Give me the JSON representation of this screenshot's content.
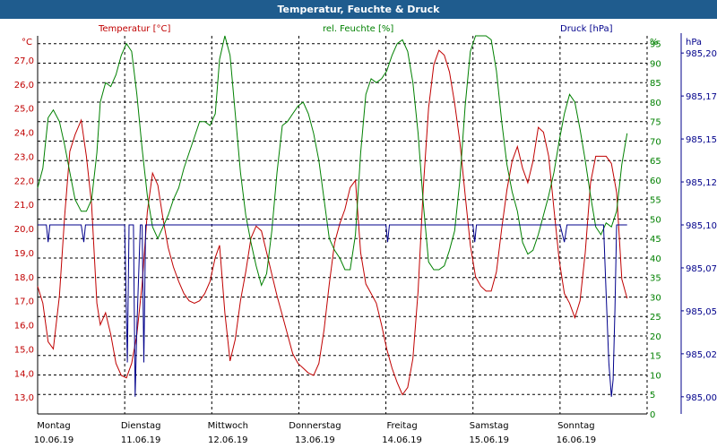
{
  "window": {
    "title": "Temperatur, Feuchte & Druck"
  },
  "colors": {
    "temp": "#c00000",
    "hum": "#008000",
    "pres": "#00008b",
    "grid": "#000000",
    "bg": "#ffffff",
    "title_bg": "#1f5c8e"
  },
  "chart_data": {
    "type": "line",
    "title": "Temperatur, Feuchte & Druck",
    "grid": true,
    "axes": {
      "temp": {
        "label": "Temperatur [°C]",
        "unit": "°C",
        "ylim": [
          12.3,
          28.0
        ],
        "ticks": [
          "13,0",
          "14,0",
          "15,0",
          "16,0",
          "17,0",
          "18,0",
          "19,0",
          "20,0",
          "21,0",
          "22,0",
          "23,0",
          "24,0",
          "25,0",
          "26,0",
          "27,0"
        ],
        "tick_values": [
          13,
          14,
          15,
          16,
          17,
          18,
          19,
          20,
          21,
          22,
          23,
          24,
          25,
          26,
          27
        ]
      },
      "hum": {
        "label": "rel. Feuchte [%]",
        "unit": "%",
        "ylim": [
          0,
          97
        ],
        "ticks": [
          "0",
          "5",
          "10",
          "15",
          "20",
          "25",
          "30",
          "35",
          "40",
          "45",
          "50",
          "55",
          "60",
          "65",
          "70",
          "75",
          "80",
          "85",
          "90",
          "95"
        ],
        "tick_values": [
          0,
          5,
          10,
          15,
          20,
          25,
          30,
          35,
          40,
          45,
          50,
          55,
          60,
          65,
          70,
          75,
          80,
          85,
          90,
          95
        ]
      },
      "pres": {
        "label": "Druck [hPa]",
        "unit": "hPa",
        "ylim": [
          984.99,
          985.21
        ],
        "ticks": [
          "985,00",
          "985,02",
          "985,05",
          "985,07",
          "985,10",
          "985,12",
          "985,15",
          "985,17",
          "985,20"
        ],
        "tick_values": [
          985.0,
          985.025,
          985.05,
          985.075,
          985.1,
          985.125,
          985.15,
          985.175,
          985.2
        ]
      }
    },
    "x": {
      "range_days": [
        0,
        7
      ],
      "ticks": [
        {
          "day": "Montag",
          "date": "10.06.19"
        },
        {
          "day": "Dienstag",
          "date": "11.06.19"
        },
        {
          "day": "Mittwoch",
          "date": "12.06.19"
        },
        {
          "day": "Donnerstag",
          "date": "13.06.19"
        },
        {
          "day": "Freitag",
          "date": "14.06.19"
        },
        {
          "day": "Samstag",
          "date": "15.06.19"
        },
        {
          "day": "Sonntag",
          "date": "16.06.19"
        }
      ]
    },
    "series": [
      {
        "name": "Temperatur [°C]",
        "axis": "temp",
        "points": [
          [
            0.0,
            17.6
          ],
          [
            0.06,
            16.9
          ],
          [
            0.12,
            15.3
          ],
          [
            0.18,
            15.0
          ],
          [
            0.25,
            17.2
          ],
          [
            0.31,
            20.5
          ],
          [
            0.37,
            23.2
          ],
          [
            0.43,
            23.9
          ],
          [
            0.5,
            24.5
          ],
          [
            0.56,
            23.0
          ],
          [
            0.62,
            21.0
          ],
          [
            0.68,
            16.9
          ],
          [
            0.72,
            16.0
          ],
          [
            0.78,
            16.5
          ],
          [
            0.84,
            15.6
          ],
          [
            0.9,
            14.4
          ],
          [
            0.96,
            13.9
          ],
          [
            1.02,
            13.8
          ],
          [
            1.08,
            14.4
          ],
          [
            1.14,
            15.6
          ],
          [
            1.2,
            17.7
          ],
          [
            1.26,
            20.7
          ],
          [
            1.32,
            22.3
          ],
          [
            1.38,
            21.8
          ],
          [
            1.44,
            20.4
          ],
          [
            1.5,
            19.2
          ],
          [
            1.56,
            18.4
          ],
          [
            1.62,
            17.8
          ],
          [
            1.68,
            17.3
          ],
          [
            1.74,
            17.0
          ],
          [
            1.8,
            16.9
          ],
          [
            1.86,
            17.0
          ],
          [
            1.92,
            17.3
          ],
          [
            1.98,
            17.8
          ],
          [
            2.04,
            18.8
          ],
          [
            2.09,
            19.3
          ],
          [
            2.15,
            16.5
          ],
          [
            2.21,
            14.5
          ],
          [
            2.27,
            15.4
          ],
          [
            2.33,
            17.0
          ],
          [
            2.39,
            18.2
          ],
          [
            2.45,
            19.6
          ],
          [
            2.51,
            20.1
          ],
          [
            2.57,
            19.9
          ],
          [
            2.63,
            19.0
          ],
          [
            2.69,
            18.1
          ],
          [
            2.75,
            17.2
          ],
          [
            2.81,
            16.4
          ],
          [
            2.87,
            15.6
          ],
          [
            2.93,
            14.8
          ],
          [
            2.99,
            14.4
          ],
          [
            3.05,
            14.2
          ],
          [
            3.11,
            14.0
          ],
          [
            3.17,
            13.9
          ],
          [
            3.23,
            14.4
          ],
          [
            3.29,
            15.8
          ],
          [
            3.35,
            17.7
          ],
          [
            3.41,
            19.4
          ],
          [
            3.47,
            20.2
          ],
          [
            3.53,
            20.8
          ],
          [
            3.59,
            21.7
          ],
          [
            3.65,
            22.0
          ],
          [
            3.71,
            19.0
          ],
          [
            3.77,
            17.7
          ],
          [
            3.83,
            17.3
          ],
          [
            3.89,
            16.9
          ],
          [
            3.95,
            16.0
          ],
          [
            4.01,
            15.0
          ],
          [
            4.07,
            14.2
          ],
          [
            4.13,
            13.6
          ],
          [
            4.19,
            13.1
          ],
          [
            4.25,
            13.4
          ],
          [
            4.31,
            14.6
          ],
          [
            4.37,
            17.4
          ],
          [
            4.43,
            21.7
          ],
          [
            4.49,
            25.0
          ],
          [
            4.55,
            26.8
          ],
          [
            4.61,
            27.4
          ],
          [
            4.67,
            27.2
          ],
          [
            4.73,
            26.5
          ],
          [
            4.79,
            25.2
          ],
          [
            4.85,
            23.6
          ],
          [
            4.91,
            21.4
          ],
          [
            4.97,
            19.3
          ],
          [
            5.03,
            18.0
          ],
          [
            5.09,
            17.6
          ],
          [
            5.15,
            17.4
          ],
          [
            5.21,
            17.4
          ],
          [
            5.27,
            18.2
          ],
          [
            5.33,
            20.0
          ],
          [
            5.39,
            21.6
          ],
          [
            5.45,
            22.8
          ],
          [
            5.51,
            23.4
          ],
          [
            5.57,
            22.5
          ],
          [
            5.63,
            21.9
          ],
          [
            5.69,
            22.8
          ],
          [
            5.75,
            24.2
          ],
          [
            5.81,
            24.0
          ],
          [
            5.87,
            23.0
          ],
          [
            5.93,
            20.8
          ],
          [
            5.99,
            18.7
          ],
          [
            6.05,
            17.3
          ],
          [
            6.11,
            16.9
          ],
          [
            6.17,
            16.3
          ],
          [
            6.23,
            17.0
          ],
          [
            6.29,
            19.0
          ],
          [
            6.35,
            21.9
          ],
          [
            6.41,
            23.0
          ],
          [
            6.47,
            23.0
          ],
          [
            6.53,
            23.0
          ],
          [
            6.59,
            22.7
          ],
          [
            6.65,
            21.5
          ],
          [
            6.71,
            17.9
          ],
          [
            6.77,
            17.1
          ]
        ]
      },
      {
        "name": "rel. Feuchte [%]",
        "axis": "hum",
        "points": [
          [
            0.0,
            58
          ],
          [
            0.06,
            63
          ],
          [
            0.12,
            76
          ],
          [
            0.18,
            78
          ],
          [
            0.25,
            75
          ],
          [
            0.31,
            69
          ],
          [
            0.37,
            62
          ],
          [
            0.43,
            55
          ],
          [
            0.5,
            52
          ],
          [
            0.56,
            52
          ],
          [
            0.62,
            55
          ],
          [
            0.68,
            67
          ],
          [
            0.72,
            80
          ],
          [
            0.78,
            85
          ],
          [
            0.84,
            84
          ],
          [
            0.9,
            87
          ],
          [
            0.96,
            92
          ],
          [
            1.02,
            95
          ],
          [
            1.08,
            93
          ],
          [
            1.14,
            82
          ],
          [
            1.2,
            68
          ],
          [
            1.26,
            56
          ],
          [
            1.32,
            48
          ],
          [
            1.38,
            45
          ],
          [
            1.44,
            48
          ],
          [
            1.5,
            51
          ],
          [
            1.56,
            55
          ],
          [
            1.62,
            58
          ],
          [
            1.68,
            63
          ],
          [
            1.74,
            67
          ],
          [
            1.8,
            71
          ],
          [
            1.86,
            75
          ],
          [
            1.92,
            75
          ],
          [
            1.98,
            74
          ],
          [
            2.04,
            77
          ],
          [
            2.09,
            91
          ],
          [
            2.15,
            97
          ],
          [
            2.21,
            92
          ],
          [
            2.27,
            77
          ],
          [
            2.33,
            62
          ],
          [
            2.39,
            51
          ],
          [
            2.45,
            44
          ],
          [
            2.51,
            38
          ],
          [
            2.57,
            33
          ],
          [
            2.63,
            36
          ],
          [
            2.69,
            47
          ],
          [
            2.75,
            62
          ],
          [
            2.81,
            74
          ],
          [
            2.87,
            75
          ],
          [
            2.93,
            77
          ],
          [
            2.99,
            79
          ],
          [
            3.05,
            80
          ],
          [
            3.11,
            77
          ],
          [
            3.17,
            72
          ],
          [
            3.23,
            65
          ],
          [
            3.29,
            55
          ],
          [
            3.35,
            45
          ],
          [
            3.41,
            42
          ],
          [
            3.47,
            40
          ],
          [
            3.53,
            37
          ],
          [
            3.59,
            37
          ],
          [
            3.65,
            46
          ],
          [
            3.71,
            67
          ],
          [
            3.77,
            82
          ],
          [
            3.83,
            86
          ],
          [
            3.89,
            85
          ],
          [
            3.95,
            86
          ],
          [
            4.01,
            88
          ],
          [
            4.07,
            92
          ],
          [
            4.13,
            95
          ],
          [
            4.19,
            96
          ],
          [
            4.25,
            93
          ],
          [
            4.31,
            85
          ],
          [
            4.37,
            72
          ],
          [
            4.43,
            54
          ],
          [
            4.49,
            39
          ],
          [
            4.55,
            37
          ],
          [
            4.61,
            37
          ],
          [
            4.67,
            38
          ],
          [
            4.73,
            42
          ],
          [
            4.79,
            47
          ],
          [
            4.85,
            60
          ],
          [
            4.91,
            79
          ],
          [
            4.97,
            93
          ],
          [
            5.03,
            97
          ],
          [
            5.09,
            97
          ],
          [
            5.15,
            97
          ],
          [
            5.21,
            96
          ],
          [
            5.27,
            88
          ],
          [
            5.33,
            75
          ],
          [
            5.39,
            64
          ],
          [
            5.45,
            57
          ],
          [
            5.51,
            52
          ],
          [
            5.57,
            44
          ],
          [
            5.63,
            41
          ],
          [
            5.69,
            42
          ],
          [
            5.75,
            46
          ],
          [
            5.81,
            51
          ],
          [
            5.87,
            56
          ],
          [
            5.93,
            62
          ],
          [
            5.99,
            70
          ],
          [
            6.05,
            77
          ],
          [
            6.11,
            82
          ],
          [
            6.17,
            80
          ],
          [
            6.23,
            73
          ],
          [
            6.29,
            65
          ],
          [
            6.35,
            56
          ],
          [
            6.41,
            48
          ],
          [
            6.47,
            46
          ],
          [
            6.53,
            49
          ],
          [
            6.59,
            48
          ],
          [
            6.65,
            52
          ],
          [
            6.71,
            64
          ],
          [
            6.77,
            72
          ]
        ]
      },
      {
        "name": "Druck [hPa]",
        "axis": "pres",
        "points": [
          [
            0.0,
            985.1
          ],
          [
            0.1,
            985.1
          ],
          [
            0.12,
            985.09
          ],
          [
            0.14,
            985.1
          ],
          [
            0.5,
            985.1
          ],
          [
            0.53,
            985.09
          ],
          [
            0.55,
            985.1
          ],
          [
            1.0,
            985.1
          ],
          [
            1.03,
            985.02
          ],
          [
            1.05,
            985.1
          ],
          [
            1.1,
            985.1
          ],
          [
            1.12,
            985.0
          ],
          [
            1.14,
            985.04
          ],
          [
            1.18,
            985.1
          ],
          [
            1.2,
            985.1
          ],
          [
            1.22,
            985.02
          ],
          [
            1.24,
            985.1
          ],
          [
            4.0,
            985.1
          ],
          [
            4.02,
            985.09
          ],
          [
            4.04,
            985.1
          ],
          [
            5.0,
            985.1
          ],
          [
            5.02,
            985.09
          ],
          [
            5.04,
            985.1
          ],
          [
            6.0,
            985.1
          ],
          [
            6.05,
            985.09
          ],
          [
            6.08,
            985.1
          ],
          [
            6.5,
            985.1
          ],
          [
            6.53,
            985.06
          ],
          [
            6.56,
            985.02
          ],
          [
            6.59,
            985.0
          ],
          [
            6.61,
            985.01
          ],
          [
            6.63,
            985.05
          ],
          [
            6.65,
            985.1
          ],
          [
            6.77,
            985.1
          ]
        ]
      }
    ]
  }
}
